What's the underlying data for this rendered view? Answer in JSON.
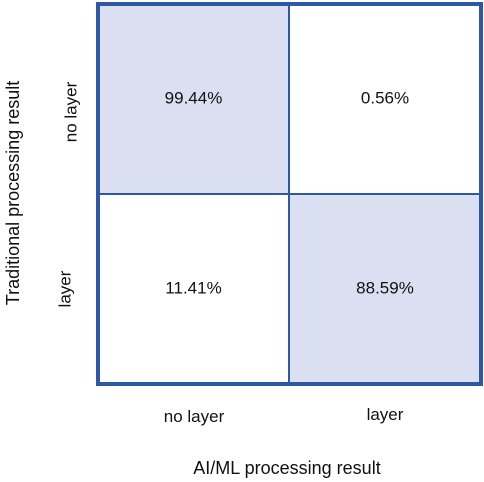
{
  "chart_data": {
    "type": "heatmap",
    "title": "",
    "xlabel": "AI/ML processing result",
    "ylabel": "Traditional processing result",
    "x_categories": [
      "no layer",
      "layer"
    ],
    "y_categories": [
      "no layer",
      "layer"
    ],
    "values": [
      [
        99.44,
        0.56
      ],
      [
        11.41,
        88.59
      ]
    ],
    "value_labels": [
      [
        "99.44%",
        "0.56%"
      ],
      [
        "11.41%",
        "88.59%"
      ]
    ],
    "unit": "%",
    "highlight_diagonal": true,
    "colors": {
      "diagonal_fill": "#dae0f2",
      "offdiag_fill": "#ffffff",
      "border": "#2e58a4"
    }
  }
}
